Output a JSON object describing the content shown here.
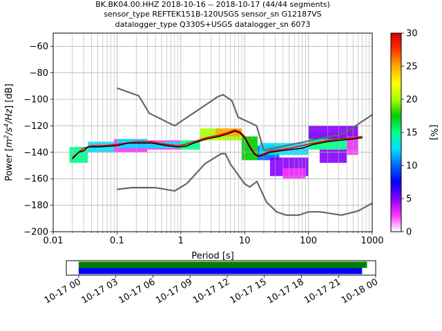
{
  "chart_data": {
    "type": "heatmap",
    "title_lines": [
      "BK.BK04.00.HHZ   2018-10-16 -- 2018-10-17  (44/44 segments)",
      "sensor_type REFTEK151B-120USGS sensor_sn G12187VS",
      "datalogger_type Q330S+USGS datalogger_sn 6073"
    ],
    "xlabel": "Period [s]",
    "ylabel_prefix": "Power [",
    "ylabel_unit": "m2/s4/Hz",
    "ylabel_suffix": "] [dB]",
    "x_scale": "log",
    "xlim": [
      0.01,
      1000
    ],
    "ylim": [
      -200,
      -50
    ],
    "x_ticks": [
      {
        "value": 0.01,
        "label": "0.01"
      },
      {
        "value": 0.1,
        "label": "0.1"
      },
      {
        "value": 1,
        "label": "1"
      },
      {
        "value": 10,
        "label": "10"
      },
      {
        "value": 100,
        "label": "100"
      },
      {
        "value": 1000,
        "label": "1000"
      }
    ],
    "y_ticks": [
      {
        "value": -60,
        "label": "−60"
      },
      {
        "value": -80,
        "label": "−80"
      },
      {
        "value": -100,
        "label": "−100"
      },
      {
        "value": -120,
        "label": "−120"
      },
      {
        "value": -140,
        "label": "−140"
      },
      {
        "value": -160,
        "label": "−160"
      },
      {
        "value": -180,
        "label": "−180"
      },
      {
        "value": -200,
        "label": "−200"
      }
    ],
    "grid": true,
    "colorbar": {
      "label": "[%]",
      "range": [
        0,
        30
      ],
      "ticks": [
        {
          "value": 0,
          "label": "0"
        },
        {
          "value": 5,
          "label": "5"
        },
        {
          "value": 10,
          "label": "10"
        },
        {
          "value": 15,
          "label": "15"
        },
        {
          "value": 20,
          "label": "20"
        },
        {
          "value": 25,
          "label": "25"
        },
        {
          "value": 30,
          "label": "30"
        }
      ],
      "colors": [
        "#ffffff",
        "#ff33ff",
        "#8800ff",
        "#0000ff",
        "#0066ff",
        "#00ddff",
        "#00ff88",
        "#00cc00",
        "#aaff00",
        "#ffff00",
        "#ffaa00",
        "#ff3300",
        "#cc0000"
      ]
    },
    "noise_models": {
      "color": "#666666",
      "high": [
        [
          0.1,
          -91.5
        ],
        [
          0.22,
          -97.4
        ],
        [
          0.32,
          -110.5
        ],
        [
          0.8,
          -120
        ],
        [
          3.8,
          -98
        ],
        [
          4.6,
          -96.5
        ],
        [
          6.3,
          -101
        ],
        [
          7.9,
          -113.5
        ],
        [
          15.4,
          -120
        ],
        [
          20,
          -138.5
        ],
        [
          354.8,
          -126
        ],
        [
          10000,
          -80
        ]
      ],
      "low": [
        [
          0.1,
          -168
        ],
        [
          0.17,
          -166.7
        ],
        [
          0.4,
          -166.7
        ],
        [
          0.8,
          -169.2
        ],
        [
          1.24,
          -163.7
        ],
        [
          2.4,
          -148.6
        ],
        [
          4.3,
          -141.1
        ],
        [
          5,
          -141.1
        ],
        [
          6,
          -149
        ],
        [
          10,
          -163.8
        ],
        [
          12,
          -166.2
        ],
        [
          15.6,
          -162.1
        ],
        [
          21.9,
          -177.5
        ],
        [
          31.6,
          -185
        ],
        [
          45,
          -187.5
        ],
        [
          70,
          -187.5
        ],
        [
          101,
          -185
        ],
        [
          154,
          -185
        ],
        [
          328,
          -187.5
        ],
        [
          600,
          -184.4
        ],
        [
          10000,
          -151.9
        ]
      ]
    },
    "mean_curve": {
      "color": "#000000",
      "points": [
        [
          0.02,
          -145
        ],
        [
          0.025,
          -140
        ],
        [
          0.03,
          -139
        ],
        [
          0.035,
          -136
        ],
        [
          0.05,
          -136
        ],
        [
          0.1,
          -135
        ],
        [
          0.15,
          -133
        ],
        [
          0.2,
          -133
        ],
        [
          0.35,
          -133
        ],
        [
          0.6,
          -135
        ],
        [
          0.9,
          -136
        ],
        [
          1.2,
          -135.5
        ],
        [
          1.6,
          -133
        ],
        [
          2.5,
          -130
        ],
        [
          4,
          -128
        ],
        [
          5.5,
          -126
        ],
        [
          7,
          -124
        ],
        [
          8.5,
          -125.5
        ],
        [
          10,
          -129
        ],
        [
          12,
          -136
        ],
        [
          14,
          -141
        ],
        [
          16,
          -143
        ],
        [
          20,
          -142
        ],
        [
          25,
          -140
        ],
        [
          35,
          -139
        ],
        [
          50,
          -138
        ],
        [
          80,
          -137
        ],
        [
          120,
          -134
        ],
        [
          200,
          -132
        ],
        [
          300,
          -131
        ],
        [
          500,
          -130
        ],
        [
          700,
          -129
        ]
      ]
    },
    "mode_curve": {
      "color": "#ff0000",
      "points": [
        [
          0.02,
          -144
        ],
        [
          0.025,
          -140
        ],
        [
          0.03,
          -137
        ],
        [
          0.04,
          -135
        ],
        [
          0.06,
          -135
        ],
        [
          0.1,
          -134
        ],
        [
          0.2,
          -132
        ],
        [
          0.35,
          -132
        ],
        [
          0.6,
          -134
        ],
        [
          0.9,
          -135
        ],
        [
          1.2,
          -134
        ],
        [
          1.6,
          -132
        ],
        [
          2.5,
          -129
        ],
        [
          4,
          -127
        ],
        [
          5.5,
          -125
        ],
        [
          7,
          -123
        ],
        [
          8.5,
          -124.5
        ],
        [
          10,
          -128
        ],
        [
          12,
          -135
        ],
        [
          14,
          -140
        ],
        [
          16,
          -143
        ],
        [
          20,
          -141
        ],
        [
          25,
          -139
        ],
        [
          35,
          -138
        ],
        [
          50,
          -137
        ],
        [
          80,
          -135
        ],
        [
          120,
          -133
        ],
        [
          200,
          -131
        ],
        [
          300,
          -130
        ],
        [
          500,
          -129
        ],
        [
          700,
          -128
        ]
      ]
    },
    "heatmap_bands": [
      {
        "x_range": [
          0.018,
          0.035
        ],
        "y_range": [
          -148,
          -136
        ],
        "color": "#00ff88"
      },
      {
        "x_range": [
          0.035,
          0.09
        ],
        "y_range": [
          -140,
          -132
        ],
        "color": "#00ddff"
      },
      {
        "x_range": [
          0.09,
          0.3
        ],
        "y_range": [
          -140,
          -130
        ],
        "color": "#ff33ff"
      },
      {
        "x_range": [
          0.1,
          0.3
        ],
        "y_range": [
          -137,
          -130
        ],
        "color": "#00ddff"
      },
      {
        "x_range": [
          0.3,
          1.0
        ],
        "y_range": [
          -138,
          -131
        ],
        "color": "#ff33ff"
      },
      {
        "x_range": [
          0.3,
          1.0
        ],
        "y_range": [
          -137,
          -132
        ],
        "color": "#00ddff"
      },
      {
        "x_range": [
          1.0,
          2.0
        ],
        "y_range": [
          -138,
          -131
        ],
        "color": "#00ff88"
      },
      {
        "x_range": [
          2.0,
          9.0
        ],
        "y_range": [
          -131,
          -122
        ],
        "color": "#aaff00"
      },
      {
        "x_range": [
          3.5,
          9.0
        ],
        "y_range": [
          -128,
          -122
        ],
        "color": "#ffaa00"
      },
      {
        "x_range": [
          9.0,
          16.0
        ],
        "y_range": [
          -146,
          -128
        ],
        "color": "#00cc00"
      },
      {
        "x_range": [
          16.0,
          35.0
        ],
        "y_range": [
          -146,
          -135
        ],
        "color": "#0066ff"
      },
      {
        "x_range": [
          17.0,
          100.0
        ],
        "y_range": [
          -142,
          -133
        ],
        "color": "#00ddff"
      },
      {
        "x_range": [
          25.0,
          100.0
        ],
        "y_range": [
          -158,
          -144
        ],
        "color": "#8800ff"
      },
      {
        "x_range": [
          40.0,
          90.0
        ],
        "y_range": [
          -160,
          -152
        ],
        "color": "#ff33ff"
      },
      {
        "x_range": [
          100.0,
          600.0
        ],
        "y_range": [
          -138,
          -125
        ],
        "color": "#00ff88"
      },
      {
        "x_range": [
          100.0,
          600.0
        ],
        "y_range": [
          -130,
          -120
        ],
        "color": "#8800ff"
      },
      {
        "x_range": [
          150.0,
          400.0
        ],
        "y_range": [
          -148,
          -138
        ],
        "color": "#8800ff"
      },
      {
        "x_range": [
          400.0,
          600.0
        ],
        "y_range": [
          -142,
          -128
        ],
        "color": "#ff33ff"
      }
    ],
    "coverage": {
      "x_tick_labels": [
        "10-17 00",
        "10-17 03",
        "10-17 06",
        "10-17 09",
        "10-17 12",
        "10-17 15",
        "10-17 18",
        "10-17 21",
        "10-18 00"
      ],
      "start_hour": -1,
      "end_hour": 24,
      "tick_hours": [
        0,
        3,
        6,
        9,
        12,
        15,
        18,
        21,
        24
      ],
      "bars": [
        {
          "from_hour": 0,
          "to_hour": 23.3,
          "color": "#008000"
        },
        {
          "from_hour": 0,
          "to_hour": 22.9,
          "color": "#0000ff"
        }
      ]
    }
  }
}
